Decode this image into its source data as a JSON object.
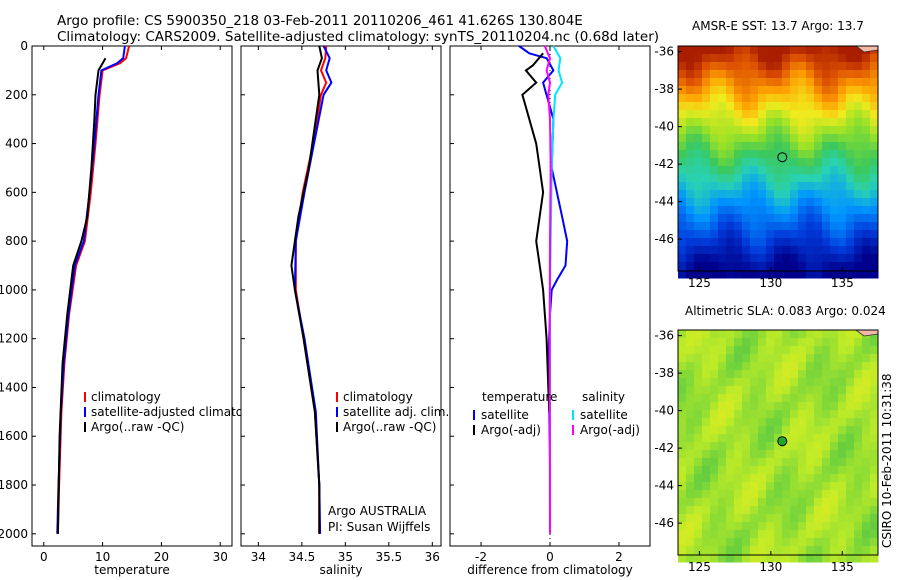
{
  "header": {
    "line1": "Argo profile: CS 5900350_218 03-Feb-2011 20110206_461 41.626S 130.804E",
    "line2": "Climatology: CARS2009. Satellite-adjusted climatology: synTS_20110204.nc (0.68d later)"
  },
  "colors": {
    "climatology": "#ff0000",
    "satellite": "#0000ff",
    "argo": "#000000",
    "satellite_sal": "#00e5ff",
    "argo_sal": "#ff00ff"
  },
  "chart_data": [
    {
      "type": "line",
      "xlabel": "temperature",
      "xlim": [
        -2,
        32
      ],
      "ylim": [
        2050,
        0
      ],
      "xticks": [
        "0",
        "10",
        "20",
        "30"
      ],
      "yticks": [
        "0",
        "200",
        "400",
        "600",
        "800",
        "1000",
        "1200",
        "1400",
        "1600",
        "1800",
        "2000"
      ],
      "legend": [
        "climatology",
        "satellite-adjusted climatolog",
        "Argo(..raw -QC)"
      ],
      "series": [
        {
          "name": "climatology",
          "x": [
            14.5,
            14.0,
            13.0,
            10.0,
            9.5,
            8.8,
            8.0,
            7.0,
            5.5,
            4.3,
            3.5,
            3.0,
            2.6,
            2.4
          ],
          "y": [
            0,
            50,
            70,
            100,
            200,
            400,
            600,
            800,
            900,
            1100,
            1300,
            1500,
            1800,
            2000
          ]
        },
        {
          "name": "satellite-adjusted climatolog",
          "x": [
            13.8,
            13.5,
            12.5,
            9.8,
            9.3,
            8.6,
            7.8,
            6.8,
            5.3,
            4.2,
            3.4,
            2.9,
            2.5,
            2.3
          ],
          "y": [
            0,
            50,
            70,
            100,
            200,
            400,
            600,
            800,
            900,
            1100,
            1300,
            1500,
            1800,
            2000
          ]
        },
        {
          "name": "Argo(..raw -QC)",
          "x": [
            10.5,
            9.3,
            8.8,
            8.6,
            8.1,
            7.4,
            6.4,
            5.0,
            4.0,
            3.2,
            2.7,
            2.4
          ],
          "y": [
            50,
            100,
            200,
            300,
            500,
            700,
            800,
            900,
            1100,
            1300,
            1600,
            2000
          ]
        }
      ]
    },
    {
      "type": "line",
      "xlabel": "salinity",
      "xlim": [
        33.8,
        36.1
      ],
      "ylim": [
        2050,
        0
      ],
      "xticks": [
        "34",
        "34.5",
        "35",
        "35.5",
        "36"
      ],
      "legend": [
        "climatology",
        "satellite adj. clim.",
        "Argo(..raw -QC)"
      ],
      "annotation": [
        "Argo AUSTRALIA",
        "PI: Susan Wijffels"
      ],
      "series": [
        {
          "name": "climatology",
          "x": [
            34.78,
            34.77,
            34.72,
            34.78,
            34.72,
            34.63,
            34.51,
            34.43,
            34.43,
            34.52,
            34.65,
            34.7,
            34.7
          ],
          "y": [
            0,
            50,
            100,
            150,
            200,
            400,
            600,
            800,
            1000,
            1200,
            1500,
            1800,
            2000
          ]
        },
        {
          "name": "satellite adj. clim.",
          "x": [
            34.75,
            34.82,
            34.78,
            34.84,
            34.75,
            34.64,
            34.53,
            34.43,
            34.42,
            34.53,
            34.66,
            34.7,
            34.71
          ],
          "y": [
            0,
            50,
            100,
            150,
            200,
            400,
            600,
            800,
            1000,
            1200,
            1500,
            1800,
            2000
          ]
        },
        {
          "name": "Argo(..raw -QC)",
          "x": [
            34.7,
            34.73,
            34.68,
            34.7,
            34.66,
            34.58,
            34.46,
            34.38,
            34.42,
            34.52,
            34.65,
            34.7,
            34.7
          ],
          "y": [
            0,
            50,
            100,
            200,
            300,
            500,
            700,
            900,
            1000,
            1200,
            1500,
            1800,
            2000
          ]
        }
      ]
    },
    {
      "type": "line",
      "xlabel": "difference from climatology",
      "xlim": [
        -2.9,
        2.9
      ],
      "ylim": [
        2050,
        0
      ],
      "xticks": [
        "-2",
        "0",
        "2"
      ],
      "legend_left_title": "temperature",
      "legend_right_title": "salinity",
      "legend": [
        "satellite",
        "Argo(-adj)",
        "satellite",
        "Argo(-adj)"
      ],
      "series": [
        {
          "name": "satellite",
          "x": [
            -0.9,
            -0.6,
            -0.1,
            0.1,
            -0.2,
            0.1,
            0.05,
            0.2,
            0.35,
            0.5,
            0.45,
            0.2,
            0.05,
            0.0,
            -0.05,
            -0.02,
            0.0
          ],
          "y": [
            0,
            30,
            50,
            100,
            150,
            300,
            500,
            600,
            700,
            800,
            900,
            960,
            1000,
            1100,
            1300,
            1500,
            1700
          ]
        },
        {
          "name": "Argo(-adj)",
          "x": [
            -0.2,
            -0.5,
            -0.7,
            -0.4,
            -0.8,
            -0.6,
            -0.4,
            -0.3,
            -0.2,
            -0.4,
            -0.3,
            -0.2,
            -0.1,
            -0.05,
            -0.02
          ],
          "y": [
            30,
            80,
            100,
            150,
            200,
            300,
            400,
            500,
            600,
            800,
            900,
            1000,
            1200,
            1400,
            1500
          ]
        },
        {
          "name": "satellite",
          "x": [
            0.1,
            0.3,
            0.25,
            0.35,
            0.15,
            0.1,
            0.05,
            0.03,
            0.0,
            0.0,
            0.0
          ],
          "y": [
            0,
            50,
            100,
            150,
            200,
            300,
            500,
            700,
            1000,
            1500,
            2000
          ]
        },
        {
          "name": "Argo(-adj)",
          "x": [
            -0.15,
            0.0,
            -0.1,
            0.0,
            -0.05,
            0.0,
            0.02,
            0.0,
            -0.01,
            0.0
          ],
          "y": [
            0,
            50,
            100,
            150,
            200,
            300,
            500,
            800,
            1200,
            2000
          ]
        }
      ]
    }
  ],
  "maps": [
    {
      "title": "AMSR-E SST: 13.7 Argo: 13.7",
      "kind": "sst",
      "xticks": [
        "125",
        "130",
        "135"
      ],
      "yticks": [
        "-36",
        "-38",
        "-40",
        "-42",
        "-44",
        "-46"
      ],
      "lon_range": [
        123.5,
        137.5
      ],
      "lat_range": [
        -47.7,
        -35.7
      ],
      "float_lon": 130.8,
      "float_lat": -41.63,
      "marker_fill": "none"
    },
    {
      "title": "Altimetric SLA: 0.083 Argo: 0.024",
      "kind": "sla",
      "xticks": [
        "125",
        "130",
        "135"
      ],
      "yticks": [
        "-36",
        "-38",
        "-40",
        "-42",
        "-44",
        "-46"
      ],
      "lon_range": [
        123.5,
        137.5
      ],
      "lat_range": [
        -47.7,
        -35.7
      ],
      "float_lon": 130.8,
      "float_lat": -41.63,
      "marker_fill": "#22aa22"
    }
  ],
  "stamp": "CSIRO 10-Feb-2011 10:31:38"
}
